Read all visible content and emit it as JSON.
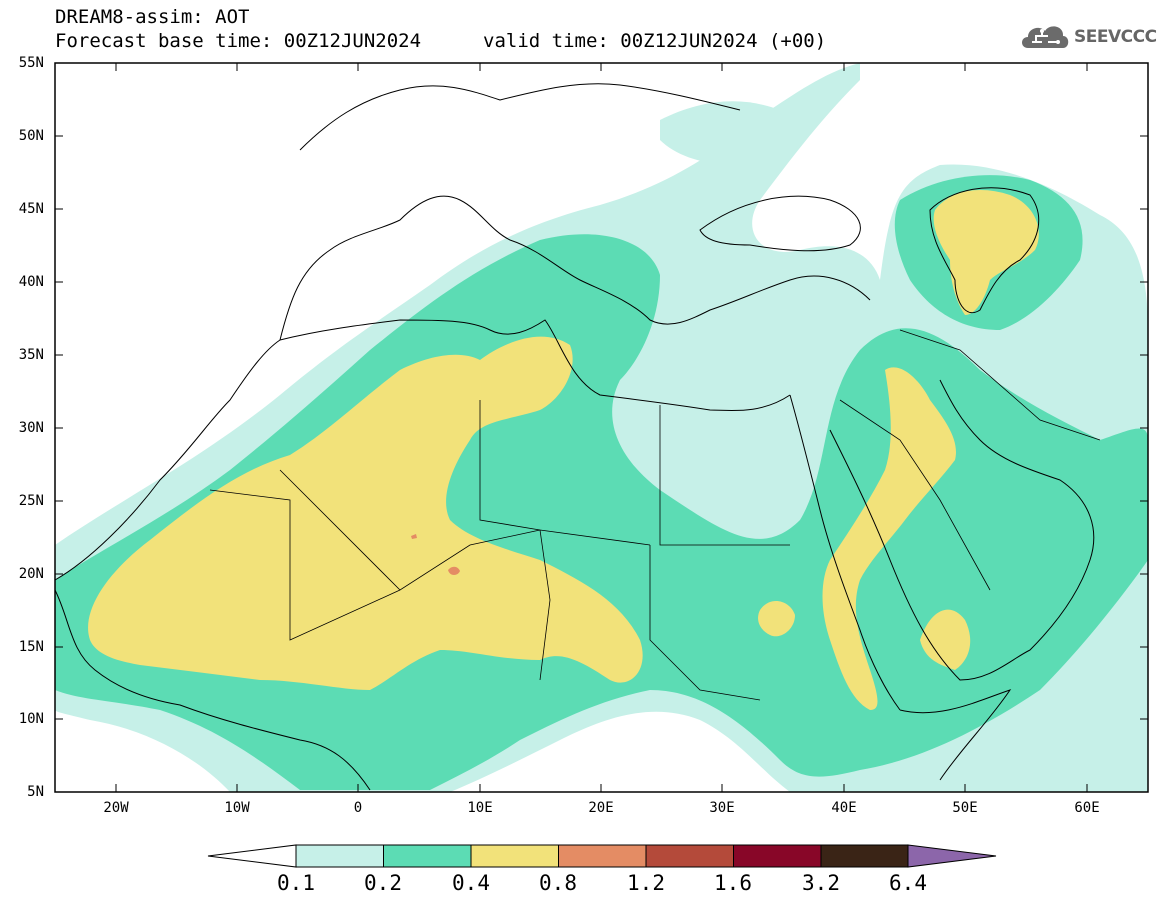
{
  "header": {
    "title": "DREAM8-assim: AOT",
    "base_time": "Forecast base time: 00Z12JUN2024",
    "valid_time": "valid time: 00Z12JUN2024 (+00)"
  },
  "logo": {
    "text": "SEEVCCC",
    "icon": "cloud-icon"
  },
  "map": {
    "lon_range": [
      -25,
      65
    ],
    "lat_range": [
      5,
      55
    ],
    "lat_labels": [
      "55N",
      "50N",
      "45N",
      "40N",
      "35N",
      "30N",
      "25N",
      "20N",
      "15N",
      "10N",
      "5N"
    ],
    "lon_labels": [
      "20W",
      "10W",
      "0",
      "10E",
      "20E",
      "30E",
      "40E",
      "50E",
      "60E"
    ]
  },
  "colorbar": {
    "labels": [
      "0.1",
      "0.2",
      "0.4",
      "0.8",
      "1.2",
      "1.6",
      "3.2",
      "6.4"
    ],
    "colors": [
      "#c6f0e8",
      "#5cdcb4",
      "#f2e27a",
      "#e48c64",
      "#b44a3a",
      "#880628",
      "#3a2416",
      "#8c66aa"
    ]
  }
}
